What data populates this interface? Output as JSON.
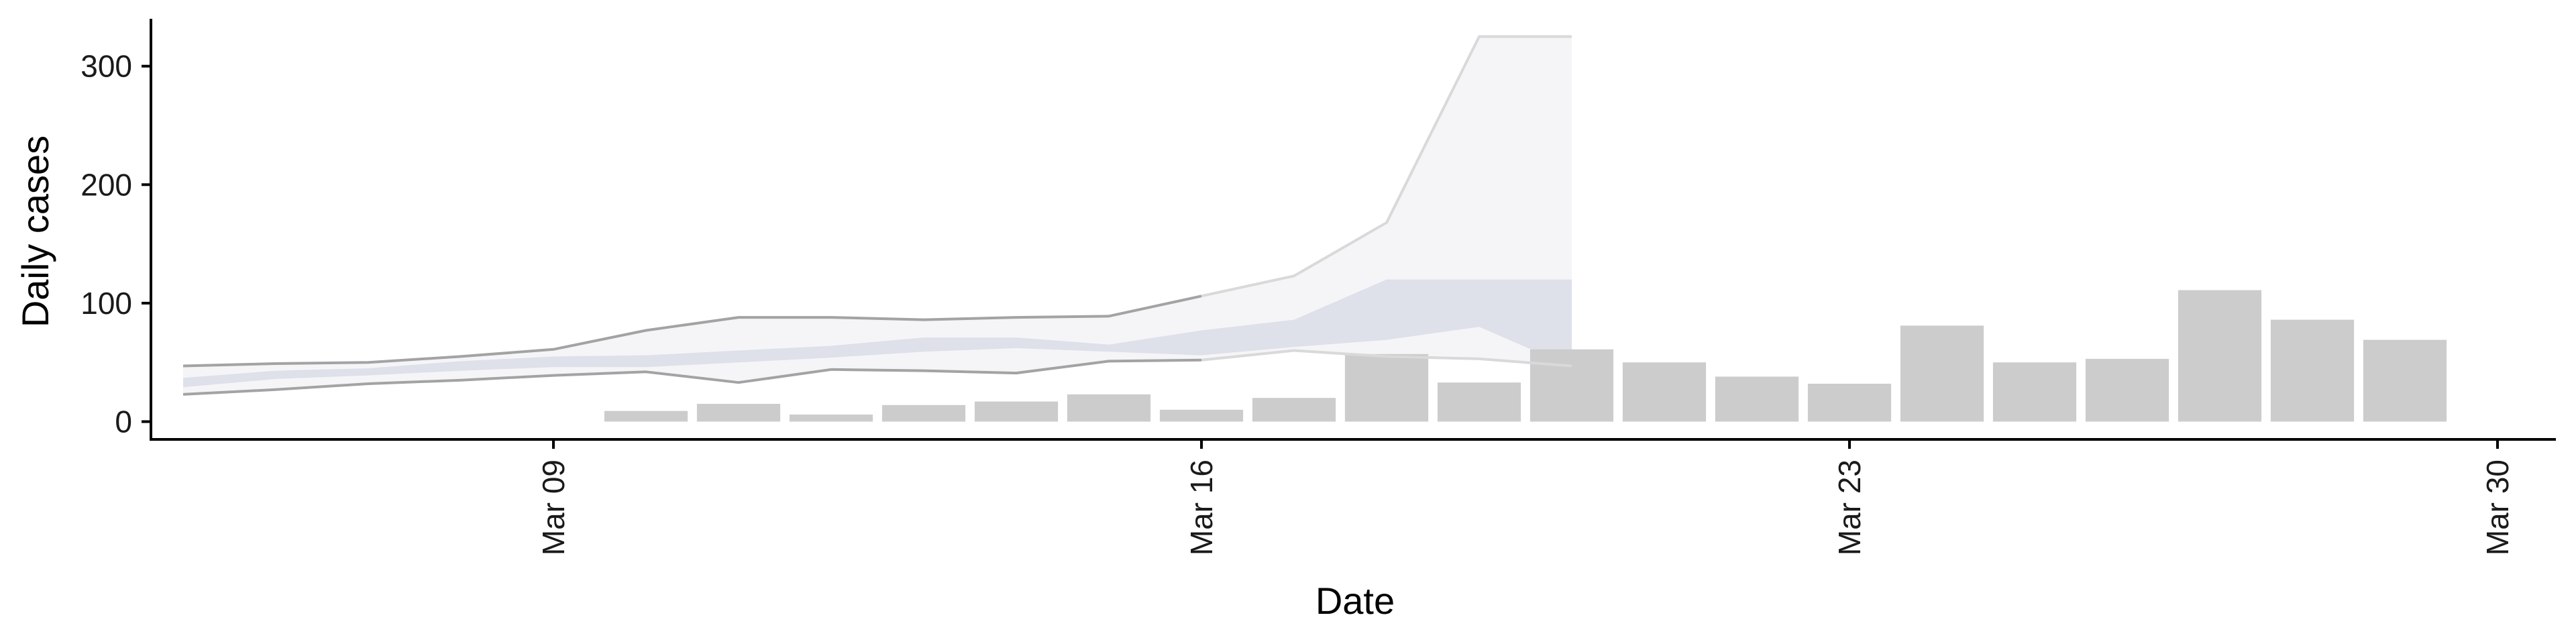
{
  "chart_data": {
    "type": "bar",
    "xlabel": "Date",
    "ylabel": "Daily cases",
    "ylim": [
      -15,
      340
    ],
    "yticks": [
      0,
      100,
      200,
      300
    ],
    "xlim": [
      "2020-03-03",
      "2020-03-30"
    ],
    "xticks": [
      {
        "date": "2020-03-09",
        "label": "Mar 09"
      },
      {
        "date": "2020-03-16",
        "label": "Mar 16"
      },
      {
        "date": "2020-03-23",
        "label": "Mar 23"
      },
      {
        "date": "2020-03-30",
        "label": "Mar 30"
      }
    ],
    "grid": false,
    "legend": "none",
    "colors": {
      "bars": "#cccccc",
      "outer_band": "#ececf2",
      "inner_band": "#d5d8e6",
      "outer_edge": "#a3a3a3",
      "faded_edge": "#d9d9d9",
      "axis": "#000000"
    },
    "bars": {
      "dates": [
        "2020-03-10",
        "2020-03-11",
        "2020-03-12",
        "2020-03-13",
        "2020-03-14",
        "2020-03-15",
        "2020-03-16",
        "2020-03-17",
        "2020-03-18",
        "2020-03-19",
        "2020-03-20",
        "2020-03-21",
        "2020-03-22",
        "2020-03-23",
        "2020-03-24",
        "2020-03-25",
        "2020-03-26",
        "2020-03-27",
        "2020-03-28",
        "2020-03-29"
      ],
      "values": [
        9,
        15,
        6,
        14,
        17,
        23,
        10,
        20,
        57,
        33,
        61,
        50,
        38,
        32,
        81,
        50,
        53,
        111,
        86,
        69
      ]
    },
    "forecast": {
      "dates": [
        "2020-03-05",
        "2020-03-06",
        "2020-03-07",
        "2020-03-08",
        "2020-03-09",
        "2020-03-10",
        "2020-03-11",
        "2020-03-12",
        "2020-03-13",
        "2020-03-14",
        "2020-03-15",
        "2020-03-16",
        "2020-03-17",
        "2020-03-18",
        "2020-03-19",
        "2020-03-20"
      ],
      "outer_lower": [
        23,
        27,
        32,
        35,
        39,
        42,
        33,
        44,
        43,
        41,
        51,
        52,
        60,
        55,
        53,
        47
      ],
      "outer_upper": [
        47,
        49,
        50,
        55,
        61,
        77,
        88,
        88,
        86,
        88,
        89,
        106,
        123,
        168,
        325,
        325
      ],
      "inner_lower": [
        29,
        36,
        39,
        43,
        46,
        46,
        50,
        54,
        59,
        62,
        59,
        56,
        63,
        69,
        80,
        46
      ],
      "inner_upper": [
        37,
        43,
        45,
        51,
        55,
        56,
        60,
        64,
        71,
        71,
        65,
        77,
        86,
        120,
        120,
        120
      ]
    }
  }
}
